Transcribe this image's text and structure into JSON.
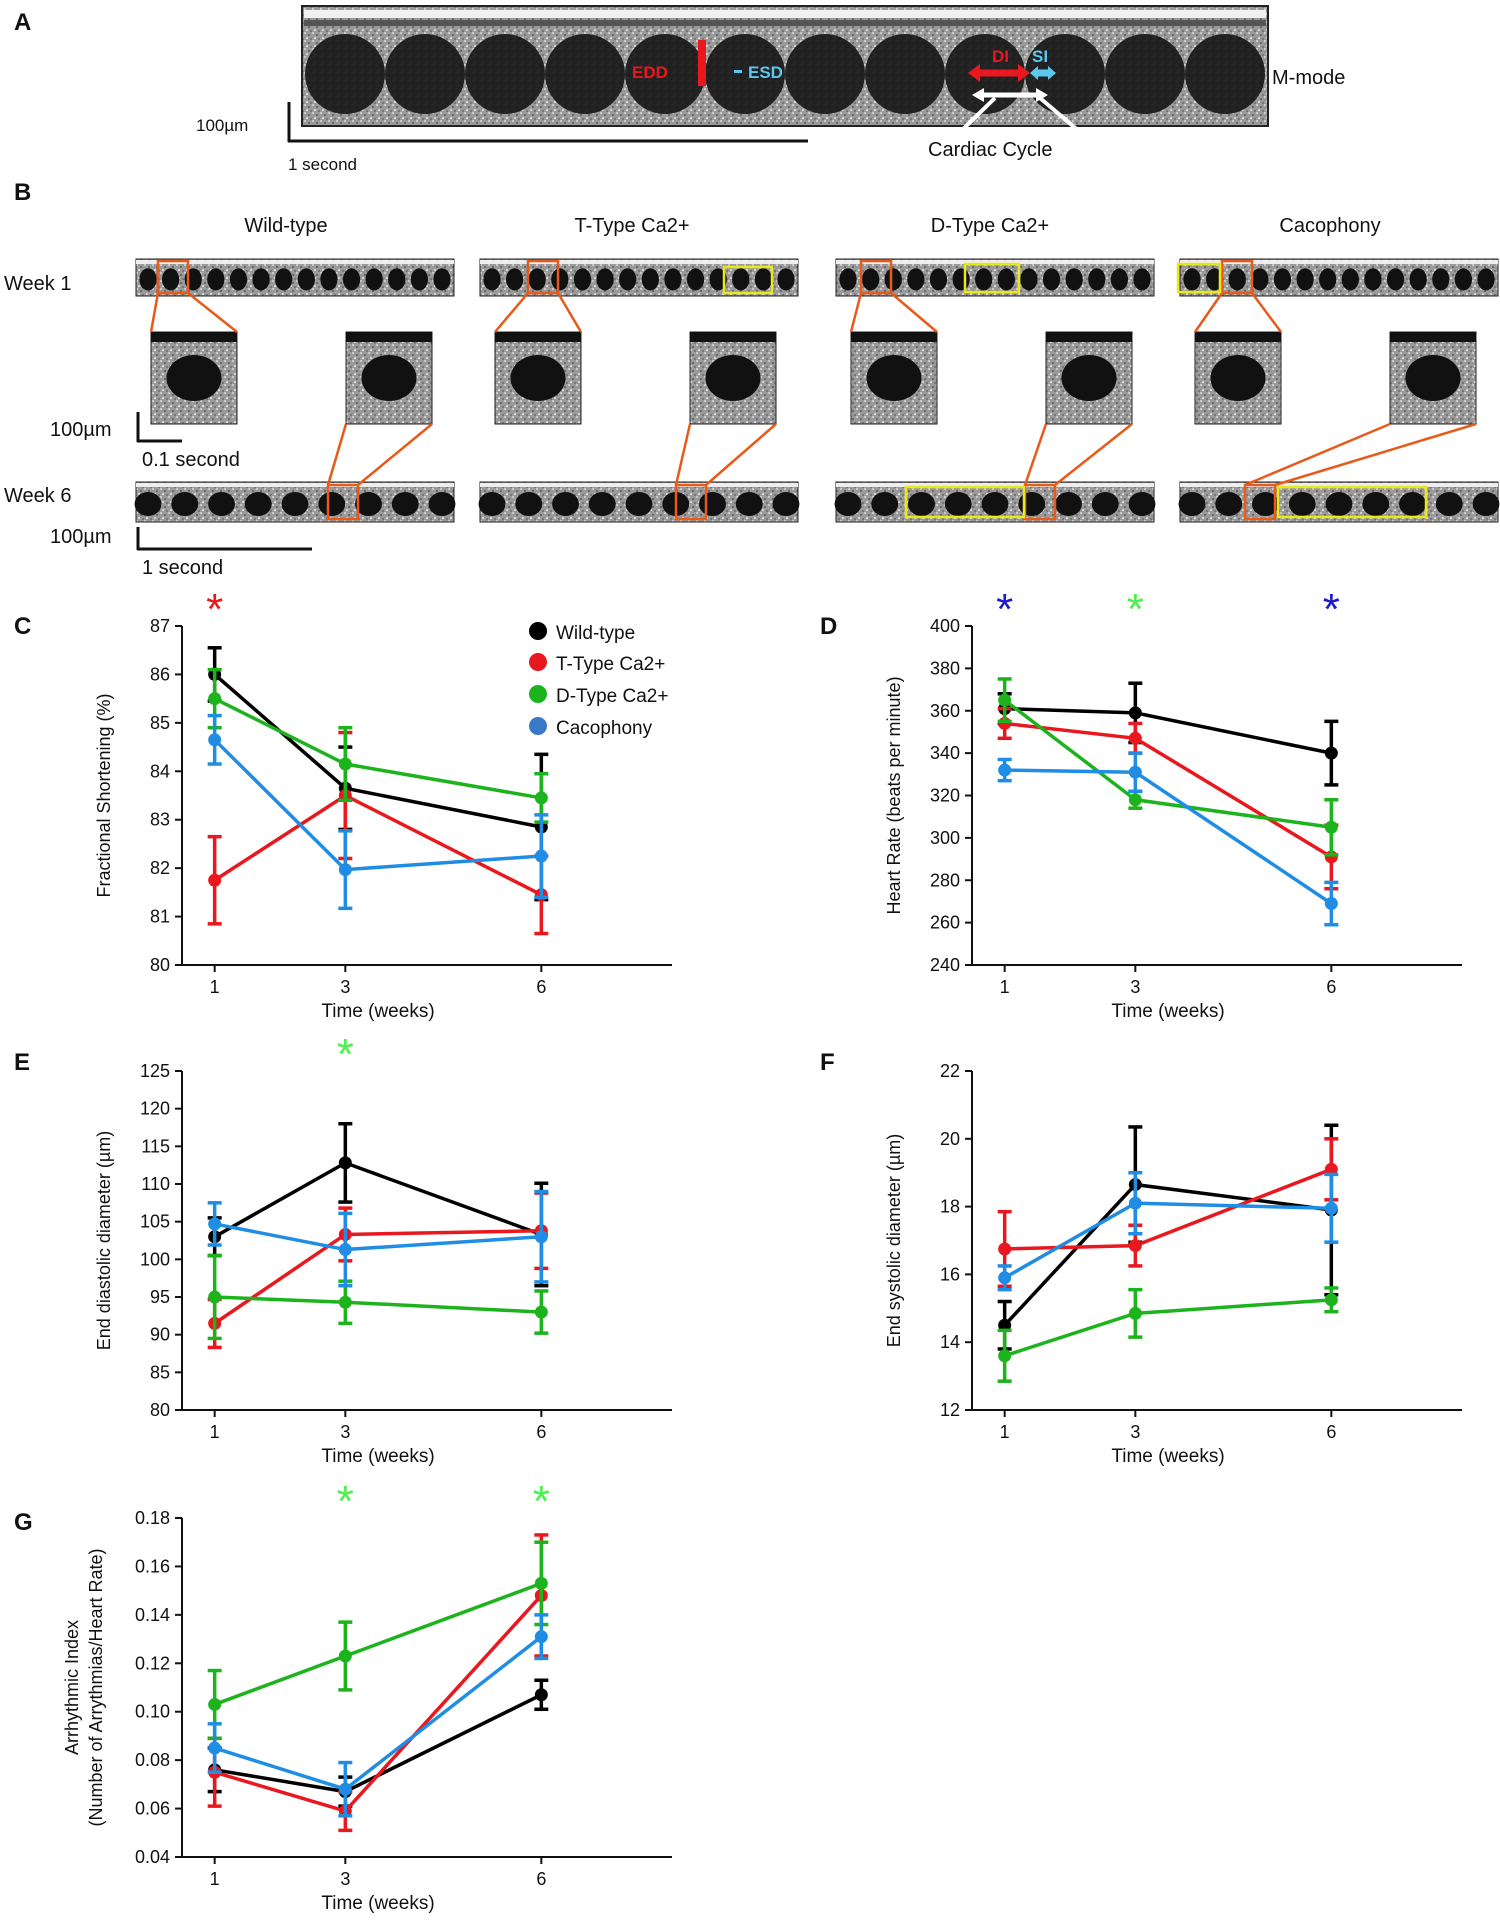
{
  "panels": {
    "A": {
      "letter": "A",
      "mode_label": "M-mode",
      "edd": "EDD",
      "esd": "ESD",
      "di": "DI",
      "si": "SI",
      "cycle": "Cardiac Cycle",
      "scale_um": "100µm",
      "scale_time": "1 second"
    },
    "B": {
      "letter": "B",
      "columns": [
        "Wild-type",
        "T-Type Ca2+",
        "D-Type Ca2+",
        "Cacophony"
      ],
      "week1": "Week 1",
      "week6": "Week 6",
      "scale_um_zoom": "100µm",
      "scale_time_zoom": "0.1 second",
      "scale_um": "100µm",
      "scale_time": "1 second"
    }
  },
  "legend": [
    "Wild-type",
    "T-Type Ca2+",
    "D-Type Ca2+",
    "Cacophony"
  ],
  "colors": {
    "wild": "#000000",
    "ttype": "#e8181e",
    "dtype": "#1db31d",
    "caco": "#1e8de3",
    "frame": "#e85a1a",
    "highlight": "#e8e81a",
    "star_red": "#e8181e",
    "star_green": "#4ef04e",
    "star_blue": "#1a1acc"
  },
  "chart_data": [
    {
      "id": "C",
      "type": "line",
      "xlabel": "Time (weeks)",
      "ylabel": "Fractional Shortening (%)",
      "x": [
        1,
        3,
        6
      ],
      "xlim": [
        0.5,
        8
      ],
      "ylim": [
        80,
        87
      ],
      "yticks": [
        80,
        81,
        82,
        83,
        84,
        85,
        86,
        87
      ],
      "yprec": 0,
      "series": [
        {
          "name": "Wild-type",
          "values": [
            86.0,
            83.65,
            82.85
          ],
          "err": [
            0.55,
            0.85,
            1.5
          ]
        },
        {
          "name": "T-Type Ca2+",
          "values": [
            81.75,
            83.5,
            81.45
          ],
          "err": [
            0.9,
            1.3,
            0.8
          ]
        },
        {
          "name": "D-Type Ca2+",
          "values": [
            85.5,
            84.15,
            83.45
          ],
          "err": [
            0.6,
            0.75,
            0.5
          ]
        },
        {
          "name": "Cacophony",
          "values": [
            84.65,
            81.97,
            82.25
          ],
          "err": [
            0.5,
            0.8,
            0.85
          ]
        }
      ],
      "stars": [
        {
          "x": 1,
          "text": "*",
          "color": "star_red"
        }
      ]
    },
    {
      "id": "D",
      "type": "line",
      "xlabel": "Time (weeks)",
      "ylabel": "Heart Rate (beats per minute)",
      "x": [
        1,
        3,
        6
      ],
      "xlim": [
        0.5,
        8
      ],
      "ylim": [
        240,
        400
      ],
      "yticks": [
        240,
        260,
        280,
        300,
        320,
        340,
        360,
        380,
        400
      ],
      "yprec": 0,
      "series": [
        {
          "name": "Wild-type",
          "values": [
            361,
            359,
            340
          ],
          "err": [
            7,
            14,
            15
          ]
        },
        {
          "name": "T-Type Ca2+",
          "values": [
            354,
            347,
            291
          ],
          "err": [
            7,
            7,
            15
          ]
        },
        {
          "name": "D-Type Ca2+",
          "values": [
            365,
            318,
            305
          ],
          "err": [
            10,
            4,
            13
          ]
        },
        {
          "name": "Cacophony",
          "values": [
            332,
            331,
            269
          ],
          "err": [
            5,
            9,
            10
          ]
        }
      ],
      "stars": [
        {
          "x": 1,
          "text": "*",
          "color": "star_blue"
        },
        {
          "x": 3,
          "text": "*",
          "color": "star_green"
        },
        {
          "x": 6,
          "text": "*",
          "color": "star_blue"
        }
      ]
    },
    {
      "id": "E",
      "type": "line",
      "xlabel": "Time (weeks)",
      "ylabel": "End diastolic diameter (µm)",
      "x": [
        1,
        3,
        6
      ],
      "xlim": [
        0.5,
        8
      ],
      "ylim": [
        80,
        125
      ],
      "yticks": [
        80,
        85,
        90,
        95,
        100,
        105,
        110,
        115,
        120,
        125
      ],
      "yprec": 0,
      "series": [
        {
          "name": "Wild-type",
          "values": [
            103,
            112.8,
            103.3
          ],
          "err": [
            2.5,
            5.2,
            6.8
          ]
        },
        {
          "name": "T-Type Ca2+",
          "values": [
            91.5,
            103.3,
            103.8
          ],
          "err": [
            3.2,
            3.5,
            5
          ]
        },
        {
          "name": "D-Type Ca2+",
          "values": [
            95,
            94.3,
            93
          ],
          "err": [
            5.5,
            2.8,
            2.8
          ]
        },
        {
          "name": "Cacophony",
          "values": [
            104.7,
            101.3,
            103
          ],
          "err": [
            2.8,
            4.8,
            6
          ]
        }
      ],
      "stars": [
        {
          "x": 3,
          "text": "*",
          "color": "star_green"
        }
      ]
    },
    {
      "id": "F",
      "type": "line",
      "xlabel": "Time (weeks)",
      "ylabel": "End systolic diameter (µm)",
      "x": [
        1,
        3,
        6
      ],
      "xlim": [
        0.5,
        8
      ],
      "ylim": [
        12,
        22
      ],
      "yticks": [
        12,
        14,
        16,
        18,
        20,
        22
      ],
      "yprec": 0,
      "series": [
        {
          "name": "Wild-type",
          "values": [
            14.5,
            18.65,
            17.9
          ],
          "err": [
            0.7,
            1.7,
            2.5
          ]
        },
        {
          "name": "T-Type Ca2+",
          "values": [
            16.75,
            16.85,
            19.1
          ],
          "err": [
            1.1,
            0.6,
            0.9
          ]
        },
        {
          "name": "D-Type Ca2+",
          "values": [
            13.6,
            14.85,
            15.25
          ],
          "err": [
            0.75,
            0.7,
            0.35
          ]
        },
        {
          "name": "Cacophony",
          "values": [
            15.9,
            18.1,
            17.95
          ],
          "err": [
            0.35,
            0.9,
            1.0
          ]
        }
      ],
      "stars": []
    },
    {
      "id": "G",
      "type": "line",
      "xlabel": "Time (weeks)",
      "ylabel": "Arrhythmic Index",
      "ylabel2": "(Number of Arrythmias/Heart Rate)",
      "x": [
        1,
        3,
        6
      ],
      "xlim": [
        0.5,
        8
      ],
      "ylim": [
        0.04,
        0.18
      ],
      "yticks": [
        0.04,
        0.06,
        0.08,
        0.1,
        0.12,
        0.14,
        0.16,
        0.18
      ],
      "yprec": 2,
      "series": [
        {
          "name": "Wild-type",
          "values": [
            0.076,
            0.067,
            0.107
          ],
          "err": [
            0.009,
            0.006,
            0.006
          ]
        },
        {
          "name": "T-Type Ca2+",
          "values": [
            0.075,
            0.059,
            0.148
          ],
          "err": [
            0.014,
            0.008,
            0.025
          ]
        },
        {
          "name": "D-Type Ca2+",
          "values": [
            0.103,
            0.123,
            0.153
          ],
          "err": [
            0.014,
            0.014,
            0.017
          ]
        },
        {
          "name": "Cacophony",
          "values": [
            0.085,
            0.068,
            0.131
          ],
          "err": [
            0.01,
            0.011,
            0.009
          ]
        }
      ],
      "stars": [
        {
          "x": 3,
          "text": "*",
          "color": "star_green"
        },
        {
          "x": 6,
          "text": "*",
          "color": "star_green"
        }
      ]
    }
  ]
}
